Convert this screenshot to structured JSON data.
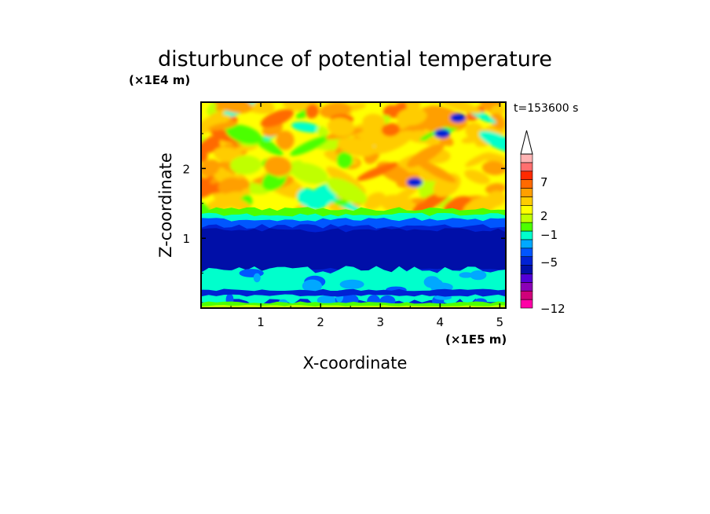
{
  "chart_data": {
    "type": "heatmap",
    "title": "disturbunce of potential temperature",
    "xlabel": "X-coordinate",
    "ylabel": "Z-coordinate",
    "x_scale_label": "(×1E5 m)",
    "y_scale_label": "(×1E4 m)",
    "time_label": "t=153600 s",
    "xlim": [
      0,
      5.1
    ],
    "ylim": [
      0,
      2.95
    ],
    "x_ticks": [
      "1",
      "2",
      "3",
      "4",
      "5"
    ],
    "y_ticks": [
      "1",
      "2"
    ],
    "colorbar": {
      "labels": [
        "7",
        "2",
        "−1",
        "−5",
        "−12"
      ],
      "colors": [
        "#ff00a6",
        "#d1007a",
        "#8b00b7",
        "#5200d6",
        "#000fa8",
        "#0022d4",
        "#0056ff",
        "#00a8ff",
        "#00ffcc",
        "#4cff00",
        "#c0ff00",
        "#ffff00",
        "#ffcc00",
        "#ff9f00",
        "#ff6a00",
        "#ff2a00",
        "#ff6f6f",
        "#ffb3b3"
      ],
      "extend": "max"
    },
    "bands": [
      {
        "z_from": 0.0,
        "z_to": 0.08,
        "level": "green / yellow-green"
      },
      {
        "z_from": 0.08,
        "z_to": 0.55,
        "level": "cyan with blue patches"
      },
      {
        "z_from": 0.55,
        "z_to": 1.2,
        "level": "dark blue (about −5)"
      },
      {
        "z_from": 1.2,
        "z_to": 1.4,
        "level": "blue / cyan / green"
      },
      {
        "z_from": 1.4,
        "z_to": 2.95,
        "level": "yellow / orange with green and cyan blobs"
      }
    ]
  },
  "colors": {
    "frame": "#000000",
    "background": "#ffffff"
  }
}
